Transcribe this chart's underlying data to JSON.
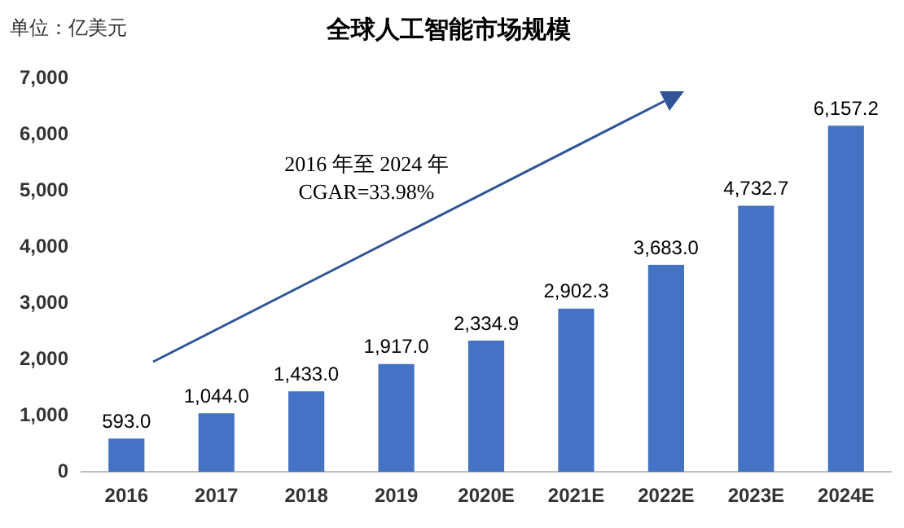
{
  "chart_data": {
    "type": "bar",
    "title": "全球人工智能市场规模",
    "ylabel": "单位：亿美元",
    "categories": [
      "2016",
      "2017",
      "2018",
      "2019",
      "2020E",
      "2021E",
      "2022E",
      "2023E",
      "2024E"
    ],
    "values": [
      593.0,
      1044.0,
      1433.0,
      1917.0,
      2334.9,
      2902.3,
      3683.0,
      4732.7,
      6157.2
    ],
    "value_labels": [
      "593.0",
      "1,044.0",
      "1,433.0",
      "1,917.0",
      "2,334.9",
      "2,902.3",
      "3,683.0",
      "4,732.7",
      "6,157.2"
    ],
    "color": "#4472c4",
    "ylim": [
      0,
      7000
    ],
    "yticks": [
      {
        "value": 0,
        "label": "0"
      },
      {
        "value": 1000,
        "label": "1,000"
      },
      {
        "value": 2000,
        "label": "2,000"
      },
      {
        "value": 3000,
        "label": "3,000"
      },
      {
        "value": 4000,
        "label": "4,000"
      },
      {
        "value": 5000,
        "label": "5,000"
      },
      {
        "value": 6000,
        "label": "6,000"
      },
      {
        "value": 7000,
        "label": "7,000"
      }
    ],
    "grid": false,
    "legend": false,
    "annotations": [
      "2016 年至 2024 年",
      "CGAR=33.98%"
    ]
  }
}
